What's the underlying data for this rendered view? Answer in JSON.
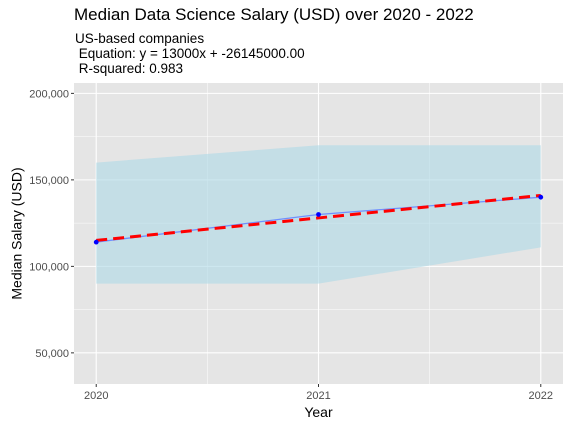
{
  "chart_data": {
    "type": "line",
    "title": "Median Data Science Salary (USD) over 2020 - 2022",
    "subtitle_lines": [
      "US-based companies",
      " Equation: y = 13000x + -26145000.00",
      " R-squared: 0.983"
    ],
    "xlabel": "Year",
    "ylabel": "Median Salary (USD)",
    "x": [
      2020,
      2021,
      2022
    ],
    "x_tick_labels": [
      "2020",
      "2021",
      "2022"
    ],
    "xlim": [
      2019.9,
      2022.1
    ],
    "ylim": [
      32000,
      206000
    ],
    "y_ticks": [
      50000,
      100000,
      150000,
      200000
    ],
    "y_tick_labels": [
      "50,000",
      "100,000",
      "150,000",
      "200,000"
    ],
    "series": [
      {
        "values": [
          114000,
          130000,
          140000
        ],
        "style": "line-with-points",
        "line_color": "#6f8fff",
        "point_color": "#0000ff"
      },
      {
        "values": [
          115000,
          128000,
          141000
        ],
        "style": "dashed-regression",
        "color": "#ff0000"
      }
    ],
    "ribbon": {
      "lower": [
        90000,
        90000,
        111000
      ],
      "upper": [
        160000,
        170000,
        170000
      ],
      "color": "#add8e6",
      "opacity": 0.6
    },
    "grid": true,
    "legend": "none",
    "panel_background": "#e5e5e5",
    "grid_color": "#ffffff"
  }
}
